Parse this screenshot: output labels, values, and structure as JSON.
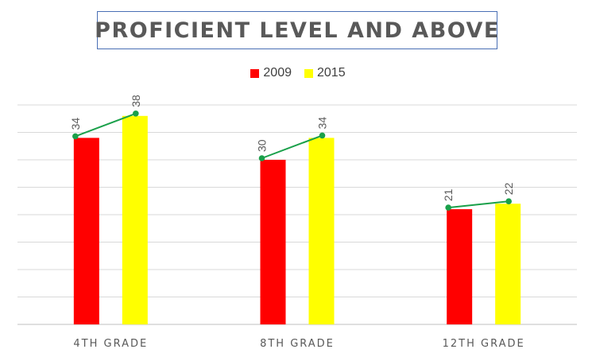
{
  "chart_data": {
    "type": "bar",
    "title": "PROFICIENT LEVEL AND ABOVE",
    "categories": [
      "4TH GRADE",
      "8TH GRADE",
      "12TH GRADE"
    ],
    "series": [
      {
        "name": "2009",
        "color": "#ff0000",
        "values": [
          34,
          30,
          21
        ]
      },
      {
        "name": "2015",
        "color": "#ffff00",
        "values": [
          38,
          34,
          22
        ]
      }
    ],
    "ylim": [
      0,
      40
    ],
    "y_gridline_step": 5,
    "grid": true,
    "legend_position": "top",
    "y_axis_labels_visible": false,
    "connector_line_color": "#1aa04a",
    "connector_marker_color": "#1aa04a",
    "data_labels": true
  }
}
